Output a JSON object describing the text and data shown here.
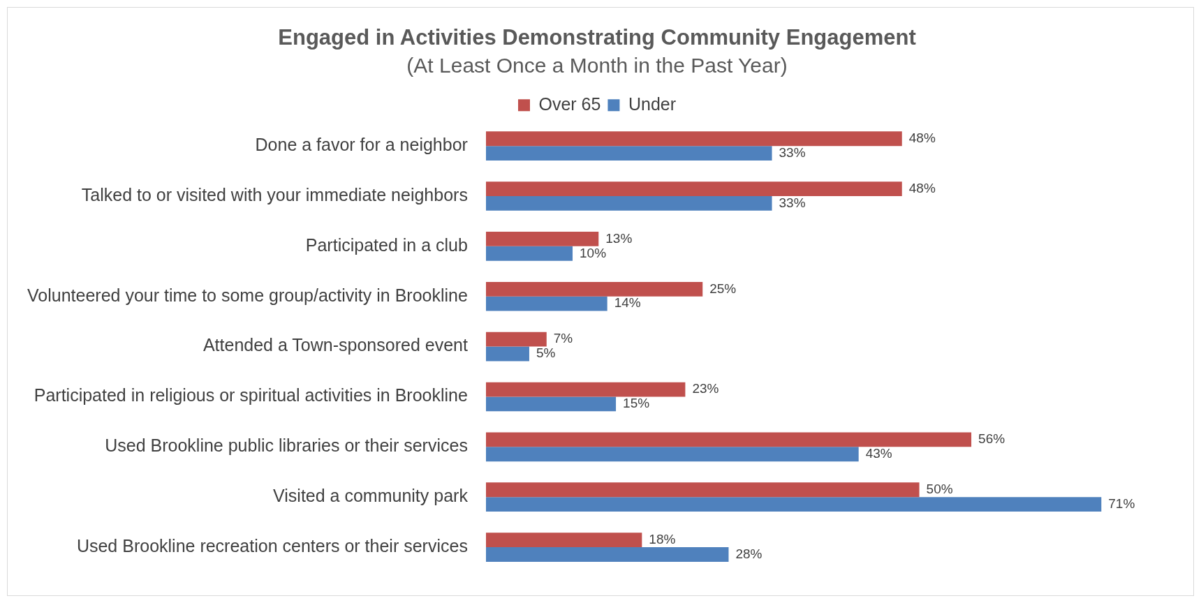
{
  "chart_data": {
    "type": "bar",
    "orientation": "horizontal",
    "title": "Engaged in Activities Demonstrating Community Engagement",
    "subtitle": "(At Least Once a Month in the Past Year)",
    "categories": [
      "Done a favor for a neighbor",
      "Talked to or visited with your immediate neighbors",
      "Participated in a club",
      "Volunteered your time to some group/activity in Brookline",
      "Attended a Town-sponsored event",
      "Participated in religious or spiritual activities in Brookline",
      "Used Brookline public libraries or their services",
      "Visited a community park",
      "Used Brookline recreation centers or their services"
    ],
    "series": [
      {
        "name": "Over 65",
        "color": "#c0504d",
        "values": [
          48,
          48,
          13,
          25,
          7,
          23,
          56,
          50,
          18
        ],
        "value_labels": [
          "48%",
          "48%",
          "13%",
          "25%",
          "7%",
          "23%",
          "56%",
          "50%",
          "18%"
        ]
      },
      {
        "name": "Under",
        "color": "#4f81bd",
        "values": [
          33,
          33,
          10,
          14,
          5,
          15,
          43,
          71,
          28
        ],
        "value_labels": [
          "33%",
          "33%",
          "10%",
          "14%",
          "5%",
          "15%",
          "43%",
          "71%",
          "28%"
        ]
      }
    ],
    "legend": "top"
  }
}
